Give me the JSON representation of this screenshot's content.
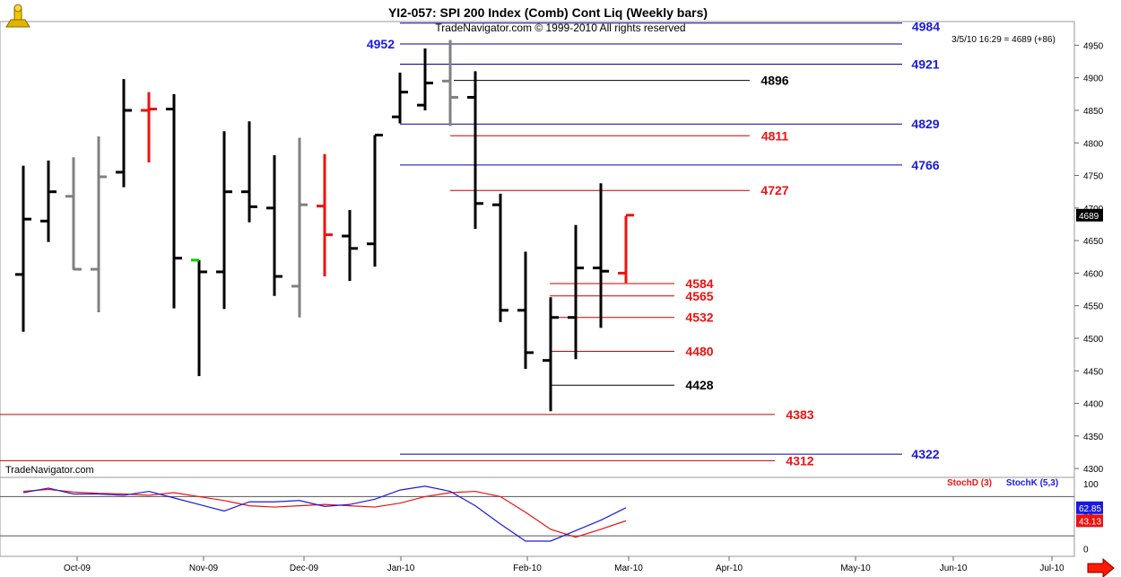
{
  "header": {
    "title": "YI2-057:  SPI 200 Index (Comb) Cont Liq  (Weekly bars)",
    "copyright": "TradeNavigator.com © 1999-2010 All rights reserved",
    "quote": "3/5/10 16:29 = 4689 (+86)",
    "watermark": "TradeNavigator.com",
    "logo_icon": "trophy-icon"
  },
  "colors": {
    "black": "#000000",
    "gray": "#808080",
    "red": "#ee1111",
    "blue": "#1a1adf",
    "green": "#00cc00",
    "hline_red": "#cc0000",
    "hline_blue": "#0000aa"
  },
  "chart_data": [
    {
      "type": "ohlc",
      "y_axis_side": "right",
      "ylim": [
        4285,
        4985
      ],
      "y_ticks": [
        "4950",
        "4900",
        "4850",
        "4800",
        "4750",
        "4700",
        "4650",
        "4600",
        "4550",
        "4500",
        "4450",
        "4400",
        "4350",
        "4300"
      ],
      "x_ticks": [
        "Oct-09",
        "Nov-09",
        "Dec-09",
        "Jan-10",
        "Feb-10",
        "Mar-10",
        "Apr-10",
        "May-10",
        "Jun-10",
        "Jul-10"
      ],
      "last_price_label": "4689",
      "bars": [
        {
          "date": "2009-09-04",
          "o": 4598,
          "h": 4765,
          "l": 4510,
          "c": 4683,
          "color": "black"
        },
        {
          "date": "2009-09-11",
          "o": 4680,
          "h": 4773,
          "l": 4648,
          "c": 4725,
          "color": "black"
        },
        {
          "date": "2009-09-18",
          "o": 4718,
          "h": 4778,
          "l": 4605,
          "c": 4606,
          "color": "gray"
        },
        {
          "date": "2009-09-25",
          "o": 4606,
          "h": 4810,
          "l": 4540,
          "c": 4748,
          "color": "gray"
        },
        {
          "date": "2009-10-02",
          "o": 4755,
          "h": 4898,
          "l": 4732,
          "c": 4850,
          "color": "black"
        },
        {
          "date": "2009-10-09",
          "o": 4850,
          "h": 4878,
          "l": 4770,
          "c": 4852,
          "color": "red"
        },
        {
          "date": "2009-10-16",
          "o": 4852,
          "h": 4875,
          "l": 4546,
          "c": 4623,
          "color": "black"
        },
        {
          "date": "2009-10-23",
          "o": 4620,
          "h": 4620,
          "l": 4442,
          "c": 4602,
          "color": "green_open"
        },
        {
          "date": "2009-10-30",
          "o": 4602,
          "h": 4818,
          "l": 4545,
          "c": 4725,
          "color": "black"
        },
        {
          "date": "2009-11-06",
          "o": 4725,
          "h": 4833,
          "l": 4678,
          "c": 4702,
          "color": "black"
        },
        {
          "date": "2009-11-13",
          "o": 4700,
          "h": 4781,
          "l": 4565,
          "c": 4595,
          "color": "black"
        },
        {
          "date": "2009-11-20",
          "o": 4580,
          "h": 4808,
          "l": 4532,
          "c": 4705,
          "color": "gray"
        },
        {
          "date": "2009-11-27",
          "o": 4703,
          "h": 4783,
          "l": 4595,
          "c": 4659,
          "color": "red"
        },
        {
          "date": "2009-12-04",
          "o": 4657,
          "h": 4697,
          "l": 4588,
          "c": 4638,
          "color": "black"
        },
        {
          "date": "2009-12-11",
          "o": 4645,
          "h": 4812,
          "l": 4610,
          "c": 4812,
          "color": "black"
        },
        {
          "date": "2009-12-18",
          "o": 4840,
          "h": 4908,
          "l": 4830,
          "c": 4878,
          "color": "black"
        },
        {
          "date": "2009-12-25",
          "o": 4858,
          "h": 4945,
          "l": 4850,
          "c": 4892,
          "color": "black"
        },
        {
          "date": "2010-01-01",
          "o": 4895,
          "h": 4958,
          "l": 4826,
          "c": 4870,
          "color": "gray"
        },
        {
          "date": "2010-01-08",
          "o": 4870,
          "h": 4910,
          "l": 4668,
          "c": 4707,
          "color": "black"
        },
        {
          "date": "2010-01-15",
          "o": 4705,
          "h": 4722,
          "l": 4525,
          "c": 4543,
          "color": "black"
        },
        {
          "date": "2010-01-22",
          "o": 4543,
          "h": 4633,
          "l": 4453,
          "c": 4478,
          "color": "black"
        },
        {
          "date": "2010-01-29",
          "o": 4466,
          "h": 4563,
          "l": 4388,
          "c": 4532,
          "color": "black"
        },
        {
          "date": "2010-02-05",
          "o": 4532,
          "h": 4674,
          "l": 4468,
          "c": 4608,
          "color": "black"
        },
        {
          "date": "2010-02-12",
          "o": 4608,
          "h": 4738,
          "l": 4516,
          "c": 4603,
          "color": "black"
        },
        {
          "date": "2010-02-19",
          "o": 4600,
          "h": 4688,
          "l": 4585,
          "c": 4689,
          "color": "red"
        }
      ],
      "levels": [
        {
          "value": 4984,
          "label": "4984",
          "color": "blue"
        },
        {
          "value": 4952,
          "label": "4952",
          "color": "blue"
        },
        {
          "value": 4921,
          "label": "4921",
          "color": "blue"
        },
        {
          "value": 4896,
          "label": "4896",
          "color": "black"
        },
        {
          "value": 4829,
          "label": "4829",
          "color": "blue"
        },
        {
          "value": 4811,
          "label": "4811",
          "color": "red"
        },
        {
          "value": 4766,
          "label": "4766",
          "color": "blue"
        },
        {
          "value": 4727,
          "label": "4727",
          "color": "red"
        },
        {
          "value": 4584,
          "label": "4584",
          "color": "red"
        },
        {
          "value": 4565,
          "label": "4565",
          "color": "red"
        },
        {
          "value": 4532,
          "label": "4532",
          "color": "red"
        },
        {
          "value": 4480,
          "label": "4480",
          "color": "red"
        },
        {
          "value": 4428,
          "label": "4428",
          "color": "black"
        },
        {
          "value": 4383,
          "label": "4383",
          "color": "red"
        },
        {
          "value": 4322,
          "label": "4322",
          "color": "blue"
        },
        {
          "value": 4312,
          "label": "4312",
          "color": "red"
        }
      ]
    },
    {
      "type": "line",
      "title": "",
      "ylim": [
        -10,
        108
      ],
      "y_ticks": [
        "100",
        "50",
        "0"
      ],
      "reference_lines": [
        80,
        20
      ],
      "series": [
        {
          "name": "StochD (3)",
          "color": "red",
          "last_label": "43.13",
          "values": [
            88,
            91,
            87,
            85,
            84,
            82,
            86,
            80,
            74,
            66,
            64,
            66,
            68,
            66,
            64,
            70,
            80,
            86,
            88,
            80,
            56,
            30,
            18,
            30,
            43
          ]
        },
        {
          "name": "StochK (5,3)",
          "color": "blue",
          "last_label": "62.85",
          "values": [
            86,
            93,
            84,
            84,
            82,
            88,
            78,
            68,
            58,
            72,
            72,
            74,
            65,
            68,
            76,
            90,
            96,
            88,
            66,
            38,
            12,
            12,
            28,
            44,
            63
          ]
        }
      ]
    }
  ]
}
